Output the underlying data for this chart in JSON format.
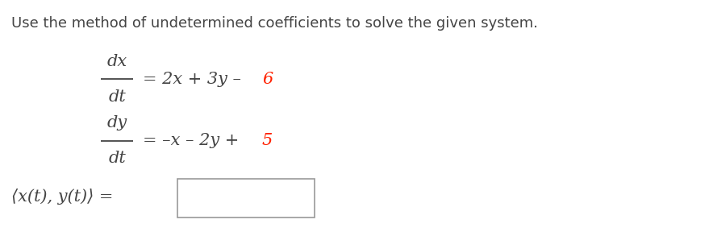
{
  "background_color": "#ffffff",
  "title_text": "Use the method of undetermined coefficients to solve the given system.",
  "title_fontsize": 13.5,
  "title_color": "#444444",
  "eq1_frac_num": "dx",
  "eq1_frac_den": "dt",
  "eq2_frac_num": "dy",
  "eq2_frac_den": "dt",
  "highlight_color": "#ff2200",
  "main_text_color": "#444444",
  "answer_label": "⟨x(t), y(t)⟩ =",
  "font_family": "DejaVu Serif",
  "eq_fontsize": 15,
  "answer_fontsize": 15,
  "title_fontsize2": 13.0
}
